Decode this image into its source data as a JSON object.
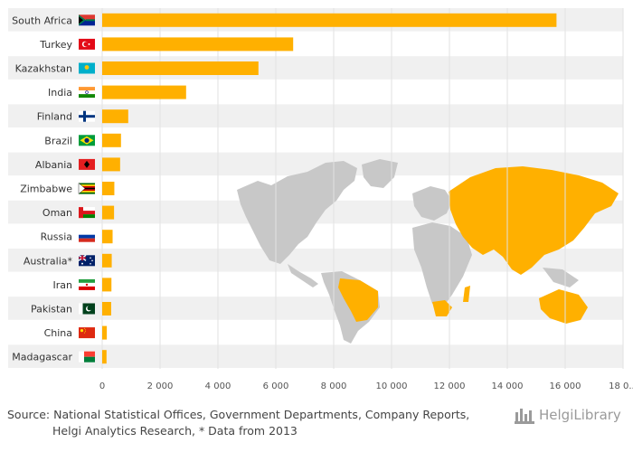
{
  "chart_data": {
    "type": "bar",
    "orientation": "horizontal",
    "categories": [
      "South Africa",
      "Turkey",
      "Kazakhstan",
      "India",
      "Finland",
      "Brazil",
      "Albania",
      "Zimbabwe",
      "Oman",
      "Russia",
      "Australia*",
      "Iran",
      "Pakistan",
      "China",
      "Madagascar"
    ],
    "values": [
      15700,
      6600,
      5400,
      2900,
      900,
      650,
      620,
      420,
      410,
      360,
      330,
      320,
      310,
      160,
      150
    ],
    "xlim": [
      0,
      18000
    ],
    "xticks": [
      0,
      2000,
      4000,
      6000,
      8000,
      10000,
      12000,
      14000,
      16000,
      18000
    ],
    "xtick_labels": [
      "0",
      "2 000",
      "4 000",
      "6 000",
      "8 000",
      "10 000",
      "12 000",
      "14 000",
      "16 000",
      "18 0..."
    ],
    "bar_color": "#FFB000",
    "stripe_color": "#F0F0F0",
    "background_map": "world map with highlighted countries",
    "map_highlight_color": "#FFB000",
    "map_base_color": "#C8C8C8",
    "flags": [
      "south-africa-flag",
      "turkey-flag",
      "kazakhstan-flag",
      "india-flag",
      "finland-flag",
      "brazil-flag",
      "albania-flag",
      "zimbabwe-flag",
      "oman-flag",
      "russia-flag",
      "australia-flag",
      "iran-flag",
      "pakistan-flag",
      "china-flag",
      "madagascar-flag"
    ]
  },
  "footer": {
    "source_line1": "Source: National Statistical Offices, Government Departments, Company Reports,",
    "source_line2": "Helgi Analytics Research, * Data from 2013"
  },
  "logo": {
    "text": "HelgiLibrary",
    "icon": "library-building-icon"
  }
}
